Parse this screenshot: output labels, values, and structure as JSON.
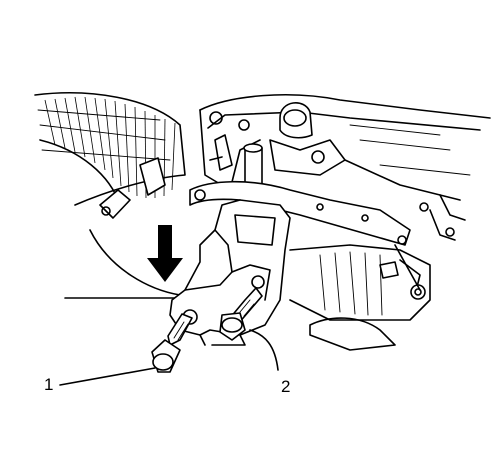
{
  "callouts": [
    {
      "id": "1",
      "label": "1"
    },
    {
      "id": "2",
      "label": "2"
    }
  ],
  "colors": {
    "ink": "#000000",
    "paper": "#ffffff"
  },
  "icons": {
    "direction": "arrow-down-icon"
  }
}
